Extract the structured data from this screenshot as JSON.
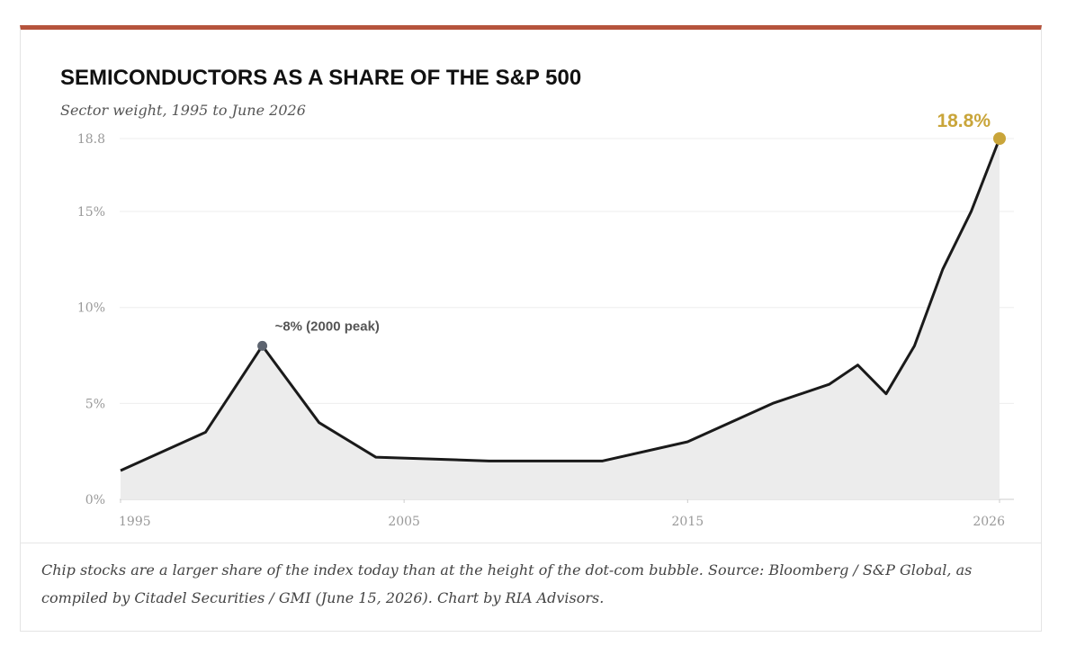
{
  "chart_data": {
    "type": "area",
    "title": "SEMICONDUCTORS AS A SHARE OF THE S&P 500",
    "subtitle": "Sector weight, 1995 to June 2026",
    "x": [
      1995,
      1998,
      2000,
      2002,
      2004,
      2008,
      2012,
      2015,
      2018,
      2020,
      2021,
      2022,
      2023,
      2024,
      2025,
      2026
    ],
    "values": [
      1.5,
      3.5,
      8,
      4,
      2.2,
      2,
      2,
      3,
      5,
      6,
      7,
      5.5,
      8,
      12,
      15,
      18.8
    ],
    "value_labels": [
      null,
      null,
      "~8% (2000 peak)",
      null,
      null,
      null,
      null,
      null,
      null,
      null,
      null,
      null,
      null,
      null,
      null,
      "18.8%"
    ],
    "color": "#1a1a1a",
    "fill_color": "#ececec",
    "highlight_colors": [
      "#5d6470",
      "#c9a53a"
    ],
    "xlim": [
      1995,
      2026
    ],
    "xticks": [
      1995,
      2005,
      2015,
      2026
    ],
    "ylim": [
      0,
      18.8
    ],
    "yticks": [
      {
        "value": 0,
        "label": "0%"
      },
      {
        "value": 5,
        "label": "5%"
      },
      {
        "value": 10,
        "label": "10%"
      },
      {
        "value": 15,
        "label": "15%"
      },
      {
        "value": 18.8,
        "label": "18.8"
      }
    ],
    "grid": true,
    "caption": "Chip stocks are a larger share of the index today than at the height of the dot-com bubble. Source: Bloomberg / S&P Global, as compiled by Citadel Securities / GMI (June 15, 2026). Chart by RIA Advisors."
  }
}
